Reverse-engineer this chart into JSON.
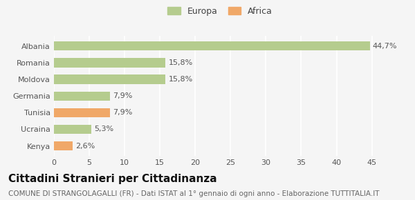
{
  "categories": [
    "Kenya",
    "Ucraina",
    "Tunisia",
    "Germania",
    "Moldova",
    "Romania",
    "Albania"
  ],
  "values": [
    2.6,
    5.3,
    7.9,
    7.9,
    15.8,
    15.8,
    44.7
  ],
  "labels": [
    "2,6%",
    "5,3%",
    "7,9%",
    "7,9%",
    "15,8%",
    "15,8%",
    "44,7%"
  ],
  "colors": [
    "#f0a868",
    "#b5cc8e",
    "#f0a868",
    "#b5cc8e",
    "#b5cc8e",
    "#b5cc8e",
    "#b5cc8e"
  ],
  "europa_color": "#b5cc8e",
  "africa_color": "#f0a868",
  "background_color": "#f5f5f5",
  "title": "Cittadini Stranieri per Cittadinanza",
  "subtitle": "COMUNE DI STRANGOLAGALLI (FR) - Dati ISTAT al 1° gennaio di ogni anno - Elaborazione TUTTITALIA.IT",
  "xlim": [
    0,
    47
  ],
  "xticks": [
    0,
    5,
    10,
    15,
    20,
    25,
    30,
    35,
    40,
    45
  ],
  "legend_europa": "Europa",
  "legend_africa": "Africa",
  "title_fontsize": 11,
  "subtitle_fontsize": 7.5,
  "label_fontsize": 8,
  "tick_fontsize": 8,
  "legend_fontsize": 9
}
